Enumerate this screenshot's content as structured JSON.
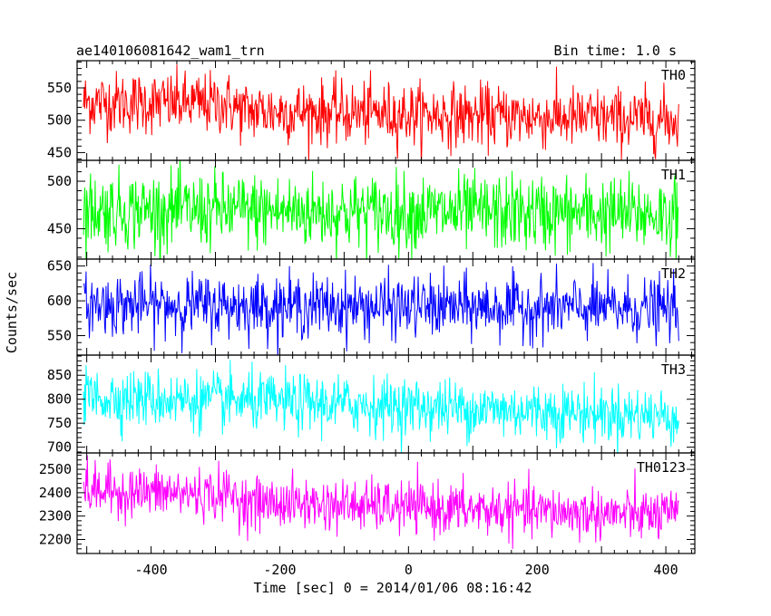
{
  "chart_data": {
    "type": "line",
    "title": "ae140106081642_wam1_trn",
    "bin_time_label": "Bin time: 1.0 s",
    "xlabel": "Time [sec] 0 = 2014/01/06 08:16:42",
    "ylabel": "Counts/sec",
    "xlim": [
      -515,
      445
    ],
    "x_ticks": [
      "-400",
      "-200",
      "0",
      "200",
      "400"
    ],
    "x_tick_values": [
      -400,
      -200,
      0,
      200,
      400
    ],
    "x_start": -505,
    "x_end": 420,
    "bin_seconds": 1.0,
    "panels": [
      {
        "name": "TH0",
        "color": "#ff0000",
        "ylim": [
          438,
          592
        ],
        "y_ticks": [
          "450",
          "500",
          "550"
        ],
        "y_tick_values": [
          450,
          500,
          550
        ],
        "trend": [
          [
            -505,
            528
          ],
          [
            -280,
            525
          ],
          [
            -260,
            515
          ],
          [
            420,
            500
          ]
        ],
        "noise": 24
      },
      {
        "name": "TH1",
        "color": "#00ff00",
        "ylim": [
          418,
          522
        ],
        "y_ticks": [
          "450",
          "500"
        ],
        "y_tick_values": [
          450,
          500
        ],
        "trend": [
          [
            -505,
            470
          ],
          [
            420,
            465
          ]
        ],
        "noise": 20
      },
      {
        "name": "TH2",
        "color": "#0000ff",
        "ylim": [
          522,
          660
        ],
        "y_ticks": [
          "550",
          "600",
          "650"
        ],
        "y_tick_values": [
          550,
          600,
          650
        ],
        "trend": [
          [
            -505,
            595
          ],
          [
            420,
            588
          ]
        ],
        "noise": 22
      },
      {
        "name": "TH3",
        "color": "#00ffff",
        "ylim": [
          688,
          892
        ],
        "y_ticks": [
          "700",
          "750",
          "800",
          "850"
        ],
        "y_tick_values": [
          700,
          750,
          800,
          850
        ],
        "trend": [
          [
            -505,
            805
          ],
          [
            0,
            785
          ],
          [
            420,
            765
          ]
        ],
        "noise": 30
      },
      {
        "name": "TH0123",
        "color": "#ff00ff",
        "ylim": [
          2140,
          2570
        ],
        "y_ticks": [
          "2200",
          "2300",
          "2400",
          "2500"
        ],
        "y_tick_values": [
          2200,
          2300,
          2400,
          2500
        ],
        "trend": [
          [
            -505,
            2410
          ],
          [
            -270,
            2390
          ],
          [
            -260,
            2360
          ],
          [
            420,
            2300
          ]
        ],
        "noise": 55
      }
    ],
    "grid": false,
    "legend": "none"
  }
}
